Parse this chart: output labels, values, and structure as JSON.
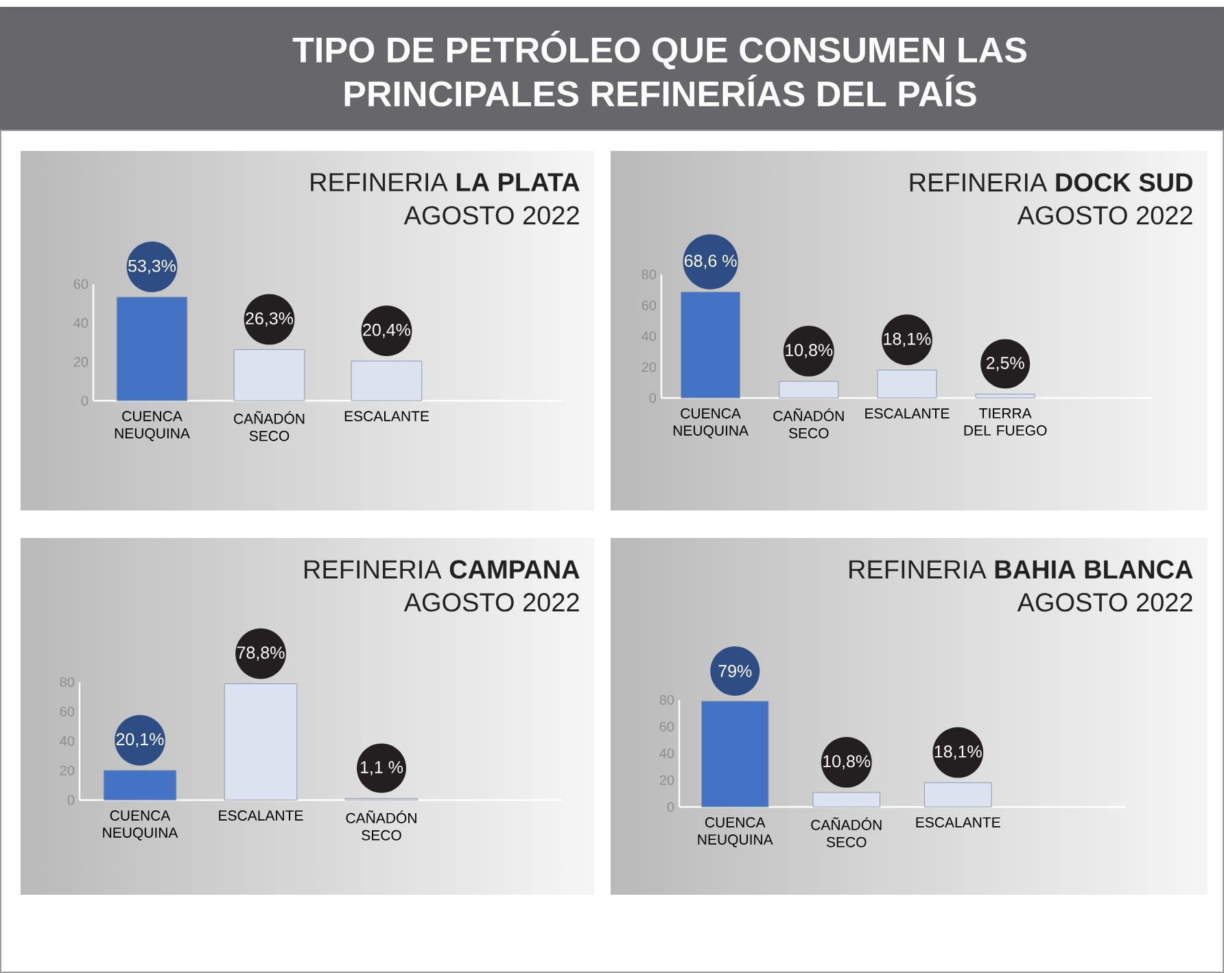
{
  "chart_data": [
    {
      "type": "bar",
      "title": "REFINERIA **LA PLATA**",
      "subtitle": "AGOSTO 2022",
      "annotations": [
        "TIPO DE PETRÓLEO QUE CONSUMEN LAS PRINCIPALES REFINERÍAS DEL PAÍS"
      ],
      "categories": [
        "CUENCA NEUQUINA",
        "CAÑADÓN SECO",
        "ESCALANTE"
      ],
      "values": [
        53.3,
        26.3,
        20.4
      ],
      "colors": [
        "#4472c4",
        "#dce3f0",
        "#dce3f0"
      ],
      "value_labels": [
        "53,3%",
        "26,3%",
        "20,4%"
      ],
      "ylim": [
        0,
        60
      ],
      "yticks": [
        0,
        20,
        40,
        60
      ]
    },
    {
      "type": "bar",
      "title": "REFINERIA **DOCK SUD**",
      "subtitle": "AGOSTO 2022",
      "categories": [
        "CUENCA NEUQUINA",
        "CAÑADÓN SECO",
        "ESCALANTE",
        "TIERRA DEL FUEGO"
      ],
      "values": [
        68.6,
        10.8,
        18.1,
        2.5
      ],
      "colors": [
        "#4472c4",
        "#dce3f0",
        "#dce3f0",
        "#dce3f0"
      ],
      "value_labels": [
        "68,6 %",
        "10,8%",
        "18,1%",
        "2,5%"
      ],
      "ylim": [
        0,
        80
      ],
      "yticks": [
        0,
        20,
        40,
        60,
        80
      ]
    },
    {
      "type": "bar",
      "title": "REFINERIA **CAMPANA**",
      "subtitle": "AGOSTO 2022",
      "categories": [
        "CUENCA NEUQUINA",
        "ESCALANTE",
        "CAÑADÓN SECO"
      ],
      "values": [
        20.1,
        78.8,
        1.1
      ],
      "colors": [
        "#4472c4",
        "#dce3f0",
        "#dce3f0"
      ],
      "value_labels": [
        "20,1%",
        "78,8%",
        "1,1 %"
      ],
      "ylim": [
        0,
        80
      ],
      "yticks": [
        0,
        20,
        40,
        60,
        80
      ]
    },
    {
      "type": "bar",
      "title": "REFINERIA **BAHIA BLANCA**",
      "subtitle": "AGOSTO 2022",
      "categories": [
        "CUENCA NEUQUINA",
        "CAÑADÓN SECO",
        "ESCALANTE"
      ],
      "values": [
        79,
        10.8,
        18.1
      ],
      "colors": [
        "#4472c4",
        "#dce3f0",
        "#dce3f0"
      ],
      "value_labels": [
        "79%",
        "10,8%",
        "18,1%"
      ],
      "ylim": [
        0,
        80
      ],
      "yticks": [
        0,
        20,
        40,
        60,
        80
      ]
    }
  ]
}
